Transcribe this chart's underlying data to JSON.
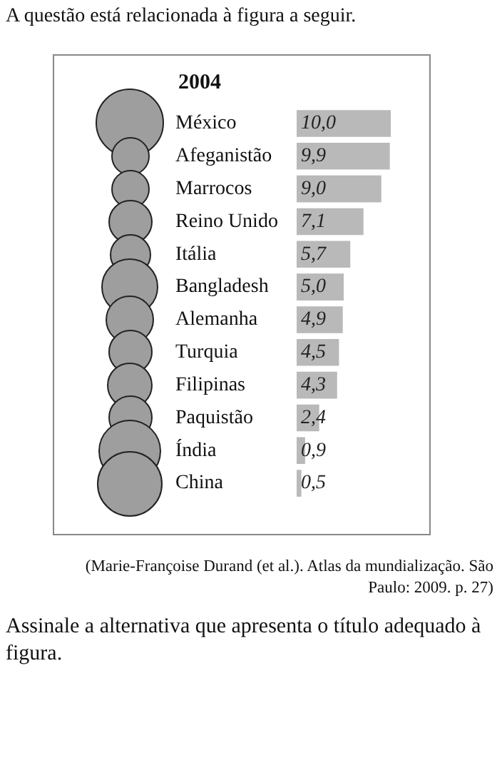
{
  "chart_data": {
    "type": "bar",
    "orientation": "horizontal",
    "title": "2004",
    "categories": [
      "México",
      "Afeganistão",
      "Marrocos",
      "Reino Unido",
      "Itália",
      "Bangladesh",
      "Alemanha",
      "Turquia",
      "Filipinas",
      "Paquistão",
      "Índia",
      "China"
    ],
    "series": [
      {
        "color": "#b9b9b9",
        "values": [
          10.0,
          9.9,
          9.0,
          7.1,
          5.7,
          5.0,
          4.9,
          4.5,
          4.3,
          2.4,
          0.9,
          0.5
        ],
        "value_labels": [
          "10,0",
          "9,9",
          "9,0",
          "7,1",
          "5,7",
          "5,0",
          "4,9",
          "4,5",
          "4,3",
          "2,4",
          "0,9",
          "0,5"
        ]
      }
    ],
    "annotations": [
      "A questão está relacionada à figura a seguir.",
      "(Marie-Françoise Durand (et al.). Atlas da mundialização. São Paulo: 2009. p. 27)",
      "Assinale a alternativa que apresenta o título adequado à figura."
    ]
  }
}
